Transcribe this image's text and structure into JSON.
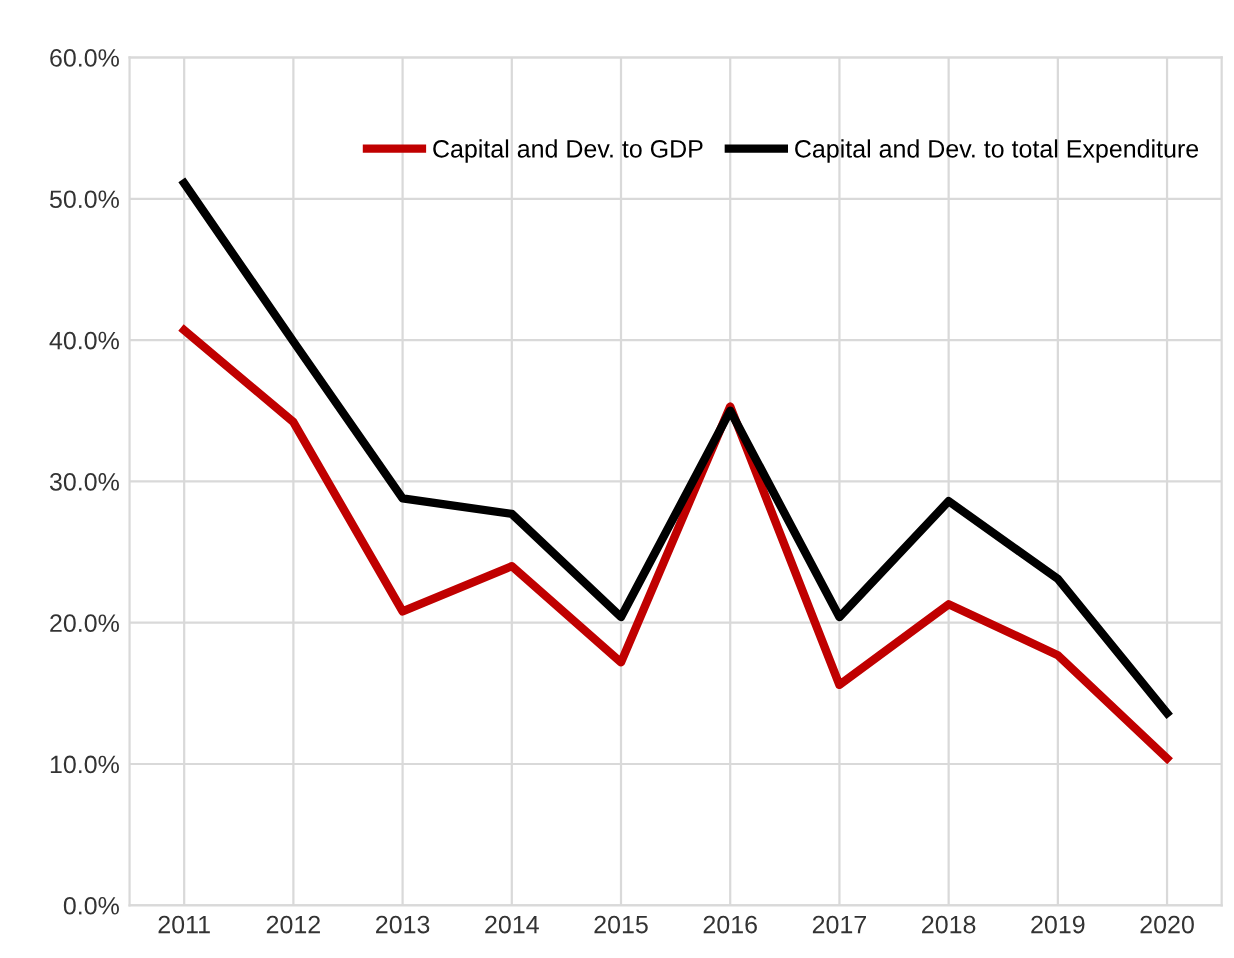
{
  "chart_data": {
    "type": "line",
    "categories": [
      "2011",
      "2012",
      "2013",
      "2014",
      "2015",
      "2016",
      "2017",
      "2018",
      "2019",
      "2020"
    ],
    "series": [
      {
        "name": "Capital and Dev. to GDP",
        "color": "#c00000",
        "values": [
          40.7,
          34.2,
          20.8,
          24.0,
          17.2,
          35.3,
          15.6,
          21.3,
          17.7,
          10.4
        ]
      },
      {
        "name": "Capital and Dev. to total Expenditure",
        "color": "#000000",
        "values": [
          51.1,
          39.9,
          28.8,
          27.7,
          20.4,
          35.0,
          20.4,
          28.6,
          23.1,
          13.6
        ]
      }
    ],
    "ylim": [
      0,
      60
    ],
    "yticks": [
      {
        "value": 0,
        "label": "0.0%"
      },
      {
        "value": 10,
        "label": "10.0%"
      },
      {
        "value": 20,
        "label": "20.0%"
      },
      {
        "value": 30,
        "label": "30.0%"
      },
      {
        "value": 40,
        "label": "40.0%"
      },
      {
        "value": 50,
        "label": "50.0%"
      },
      {
        "value": 60,
        "label": "60.0%"
      }
    ],
    "grid": true,
    "legend": "top right",
    "marker": "none",
    "line_style": "solid"
  }
}
